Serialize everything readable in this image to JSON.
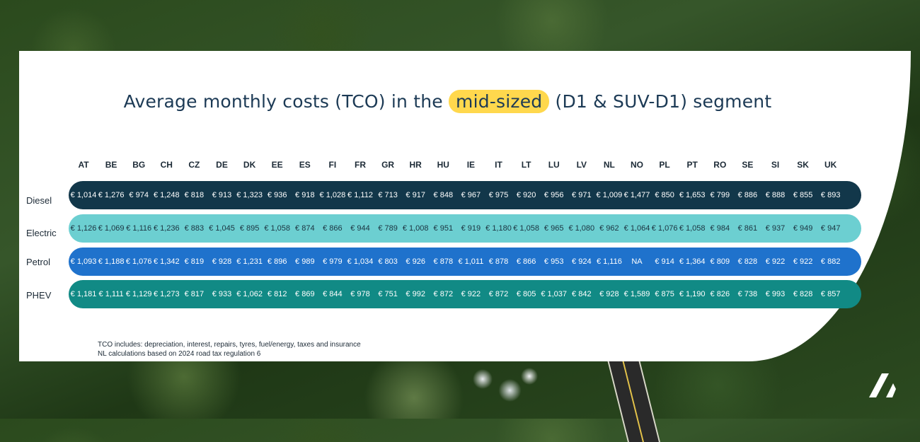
{
  "title": {
    "before": "Average monthly costs (TCO) in the",
    "highlight": "mid-sized",
    "after": "(D1 & SUV-D1) segment"
  },
  "chart_data": {
    "type": "table",
    "columns": [
      "AT",
      "BE",
      "BG",
      "CH",
      "CZ",
      "DE",
      "DK",
      "EE",
      "ES",
      "FI",
      "FR",
      "GR",
      "HR",
      "HU",
      "IE",
      "IT",
      "LT",
      "LU",
      "LV",
      "NL",
      "NO",
      "PL",
      "PT",
      "RO",
      "SE",
      "SI",
      "SK",
      "UK"
    ],
    "rows": [
      {
        "name": "Diesel",
        "color": "#12374a",
        "text_color": "#ffffff",
        "values": [
          "€ 1,014",
          "€ 1,276",
          "€ 974",
          "€ 1,248",
          "€ 818",
          "€ 913",
          "€ 1,323",
          "€ 936",
          "€ 918",
          "€ 1,028",
          "€ 1,112",
          "€ 713",
          "€ 917",
          "€ 848",
          "€ 967",
          "€ 975",
          "€ 920",
          "€ 956",
          "€ 971",
          "€ 1,009",
          "€ 1,477",
          "€ 850",
          "€ 1,653",
          "€ 799",
          "€ 886",
          "€ 888",
          "€ 855",
          "€ 893"
        ]
      },
      {
        "name": "Electric",
        "color": "#6ccfd1",
        "text_color": "#1b3340",
        "values": [
          "€ 1,126",
          "€ 1,069",
          "€ 1,116",
          "€ 1,236",
          "€ 883",
          "€ 1,045",
          "€ 895",
          "€ 1,058",
          "€ 874",
          "€ 866",
          "€ 944",
          "€ 789",
          "€ 1,008",
          "€ 951",
          "€ 919",
          "€ 1,180",
          "€ 1,058",
          "€ 965",
          "€ 1,080",
          "€ 962",
          "€ 1,064",
          "€ 1,076",
          "€ 1,058",
          "€ 984",
          "€ 861",
          "€ 937",
          "€ 949",
          "€ 947"
        ]
      },
      {
        "name": "Petrol",
        "color": "#1f72cc",
        "text_color": "#ffffff",
        "values": [
          "€ 1,093",
          "€ 1,188",
          "€ 1,076",
          "€ 1,342",
          "€ 819",
          "€ 928",
          "€ 1,231",
          "€ 896",
          "€ 989",
          "€ 979",
          "€ 1,034",
          "€ 803",
          "€ 926",
          "€ 878",
          "€ 1,011",
          "€ 878",
          "€ 866",
          "€ 953",
          "€ 924",
          "€ 1,116",
          "NA",
          "€ 914",
          "€ 1,364",
          "€ 809",
          "€ 828",
          "€ 922",
          "€ 922",
          "€ 882"
        ]
      },
      {
        "name": "PHEV",
        "color": "#118a85",
        "text_color": "#ffffff",
        "values": [
          "€ 1,181",
          "€ 1,111",
          "€ 1,129",
          "€ 1,273",
          "€ 817",
          "€ 933",
          "€ 1,062",
          "€ 812",
          "€ 869",
          "€ 844",
          "€ 978",
          "€ 751",
          "€ 992",
          "€ 872",
          "€ 922",
          "€ 872",
          "€ 805",
          "€ 1,037",
          "€ 842",
          "€ 928",
          "€ 1,589",
          "€ 875",
          "€ 1,190",
          "€ 826",
          "€ 738",
          "€ 993",
          "€ 828",
          "€ 857"
        ]
      }
    ]
  },
  "footnotes": [
    "TCO includes: depreciation, interest, repairs, tyres, fuel/energy, taxes and insurance",
    "NL calculations based on 2024 road tax regulation 6"
  ],
  "logo_icon": "leaseplan-arrow-logo"
}
